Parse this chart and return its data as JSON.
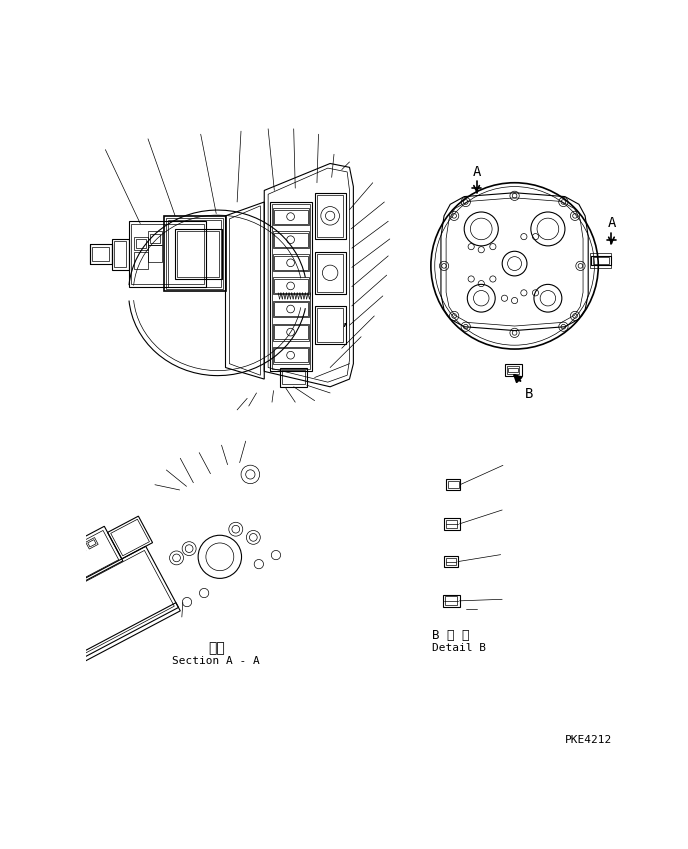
{
  "bg_color": "#ffffff",
  "line_color": "#000000",
  "fig_width": 6.88,
  "fig_height": 8.49,
  "dpi": 100,
  "bottom_right_text": "PKE4212",
  "section_label_ja": "断面",
  "section_label_en": "Section A - A",
  "detail_label_ja": "B 詳 細",
  "detail_label_en": "Detail B"
}
